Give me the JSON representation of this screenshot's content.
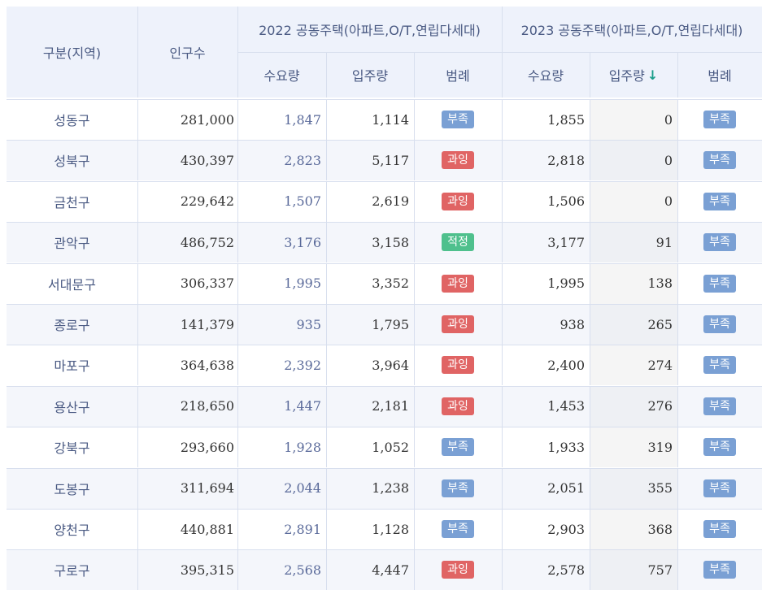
{
  "headers": {
    "region": "구분(지역)",
    "population": "인구수",
    "group_2022": "2022 공동주택(아파트,O/T,연립다세대)",
    "group_2023": "2023 공동주택(아파트,O/T,연립다세대)",
    "demand": "수요량",
    "supply": "입주량",
    "legend": "범례",
    "sort_indicator": "↓"
  },
  "colors": {
    "short": "#7aa0d4",
    "over": "#e06464",
    "ok": "#4fc08d",
    "sort_arrow": "#1a9e8a"
  },
  "rows": [
    {
      "region": "성동구",
      "population": "281,000",
      "d22": "1,847",
      "s22": "1,114",
      "l22": "부족",
      "d23": "1,855",
      "s23": "0",
      "l23": "부족"
    },
    {
      "region": "성북구",
      "population": "430,397",
      "d22": "2,823",
      "s22": "5,117",
      "l22": "과잉",
      "d23": "2,818",
      "s23": "0",
      "l23": "부족"
    },
    {
      "region": "금천구",
      "population": "229,642",
      "d22": "1,507",
      "s22": "2,619",
      "l22": "과잉",
      "d23": "1,506",
      "s23": "0",
      "l23": "부족"
    },
    {
      "region": "관악구",
      "population": "486,752",
      "d22": "3,176",
      "s22": "3,158",
      "l22": "적정",
      "d23": "3,177",
      "s23": "91",
      "l23": "부족"
    },
    {
      "region": "서대문구",
      "population": "306,337",
      "d22": "1,995",
      "s22": "3,352",
      "l22": "과잉",
      "d23": "1,995",
      "s23": "138",
      "l23": "부족"
    },
    {
      "region": "종로구",
      "population": "141,379",
      "d22": "935",
      "s22": "1,795",
      "l22": "과잉",
      "d23": "938",
      "s23": "265",
      "l23": "부족"
    },
    {
      "region": "마포구",
      "population": "364,638",
      "d22": "2,392",
      "s22": "3,964",
      "l22": "과잉",
      "d23": "2,400",
      "s23": "274",
      "l23": "부족"
    },
    {
      "region": "용산구",
      "population": "218,650",
      "d22": "1,447",
      "s22": "2,181",
      "l22": "과잉",
      "d23": "1,453",
      "s23": "276",
      "l23": "부족"
    },
    {
      "region": "강북구",
      "population": "293,660",
      "d22": "1,928",
      "s22": "1,052",
      "l22": "부족",
      "d23": "1,933",
      "s23": "319",
      "l23": "부족"
    },
    {
      "region": "도봉구",
      "population": "311,694",
      "d22": "2,044",
      "s22": "1,238",
      "l22": "부족",
      "d23": "2,051",
      "s23": "355",
      "l23": "부족"
    },
    {
      "region": "양천구",
      "population": "440,881",
      "d22": "2,891",
      "s22": "1,128",
      "l22": "부족",
      "d23": "2,903",
      "s23": "368",
      "l23": "부족"
    },
    {
      "region": "구로구",
      "population": "395,315",
      "d22": "2,568",
      "s22": "4,447",
      "l22": "과잉",
      "d23": "2,578",
      "s23": "757",
      "l23": "부족"
    }
  ]
}
